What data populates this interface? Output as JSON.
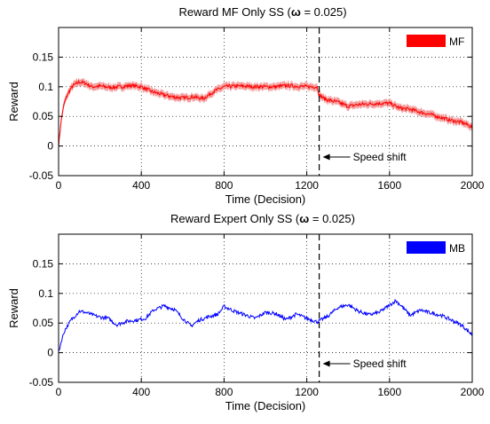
{
  "chart_data": [
    {
      "type": "line",
      "title_prefix": "Reward MF Only SS (",
      "title_symbol": "ω",
      "title_suffix": " = 0.025)",
      "xlabel": "Time (Decision)",
      "ylabel": "Reward",
      "xlim": [
        0,
        2000
      ],
      "ylim": [
        -0.05,
        0.2
      ],
      "xticks": [
        0,
        400,
        800,
        1200,
        1600,
        2000
      ],
      "xtick_labels": [
        "0",
        "400",
        "800",
        "1200",
        "1600",
        "2000"
      ],
      "yticks": [
        -0.05,
        0,
        0.05,
        0.1,
        0.15
      ],
      "ytick_labels": [
        "-0.05",
        "0",
        "0.05",
        "0.1",
        "0.15"
      ],
      "grid": true,
      "legend_position": "top-right",
      "shift_x": 1260,
      "annotation": "Speed shift",
      "series": [
        {
          "name": "MF",
          "color": "#ff0000",
          "band_color": "#f4a0a0",
          "band_halfwidth": 0.006,
          "x": [
            0,
            10,
            20,
            30,
            50,
            70,
            100,
            130,
            160,
            200,
            250,
            300,
            350,
            400,
            450,
            500,
            550,
            600,
            650,
            700,
            750,
            800,
            850,
            900,
            950,
            1000,
            1050,
            1100,
            1150,
            1200,
            1250,
            1260,
            1280,
            1300,
            1350,
            1400,
            1450,
            1500,
            1550,
            1600,
            1650,
            1700,
            1750,
            1800,
            1850,
            1900,
            1950,
            2000
          ],
          "y": [
            0.0,
            0.035,
            0.06,
            0.075,
            0.092,
            0.102,
            0.108,
            0.106,
            0.1,
            0.101,
            0.099,
            0.1,
            0.102,
            0.1,
            0.092,
            0.087,
            0.083,
            0.081,
            0.083,
            0.08,
            0.092,
            0.1,
            0.101,
            0.101,
            0.1,
            0.1,
            0.1,
            0.102,
            0.101,
            0.1,
            0.1,
            0.086,
            0.081,
            0.078,
            0.074,
            0.067,
            0.07,
            0.071,
            0.072,
            0.072,
            0.064,
            0.062,
            0.057,
            0.053,
            0.048,
            0.043,
            0.04,
            0.032
          ]
        }
      ]
    },
    {
      "type": "line",
      "title_prefix": "Reward Expert Only SS (",
      "title_symbol": "ω",
      "title_suffix": " = 0.025)",
      "xlabel": "Time (Decision)",
      "ylabel": "Reward",
      "xlim": [
        0,
        2000
      ],
      "ylim": [
        -0.05,
        0.2
      ],
      "xticks": [
        0,
        400,
        800,
        1200,
        1600,
        2000
      ],
      "xtick_labels": [
        "0",
        "400",
        "800",
        "1200",
        "1600",
        "2000"
      ],
      "yticks": [
        -0.05,
        0,
        0.05,
        0.1,
        0.15
      ],
      "ytick_labels": [
        "-0.05",
        "0",
        "0.05",
        "0.1",
        "0.15"
      ],
      "grid": true,
      "legend_position": "top-right",
      "shift_x": 1260,
      "annotation": "Speed shift",
      "series": [
        {
          "name": "MB",
          "color": "#0000ff",
          "x": [
            0,
            15,
            30,
            60,
            100,
            130,
            170,
            200,
            240,
            280,
            330,
            380,
            420,
            460,
            510,
            560,
            600,
            640,
            680,
            720,
            770,
            800,
            850,
            900,
            950,
            1000,
            1050,
            1100,
            1150,
            1200,
            1250,
            1300,
            1350,
            1400,
            1450,
            1500,
            1550,
            1600,
            1630,
            1660,
            1700,
            1750,
            1800,
            1850,
            1900,
            1950,
            2000
          ],
          "y": [
            0.0,
            0.022,
            0.038,
            0.055,
            0.07,
            0.068,
            0.063,
            0.06,
            0.058,
            0.047,
            0.053,
            0.055,
            0.058,
            0.072,
            0.079,
            0.073,
            0.058,
            0.045,
            0.055,
            0.06,
            0.065,
            0.078,
            0.07,
            0.064,
            0.058,
            0.068,
            0.066,
            0.056,
            0.065,
            0.058,
            0.052,
            0.061,
            0.076,
            0.081,
            0.07,
            0.064,
            0.068,
            0.08,
            0.088,
            0.078,
            0.063,
            0.072,
            0.067,
            0.063,
            0.055,
            0.046,
            0.03
          ]
        }
      ]
    }
  ]
}
